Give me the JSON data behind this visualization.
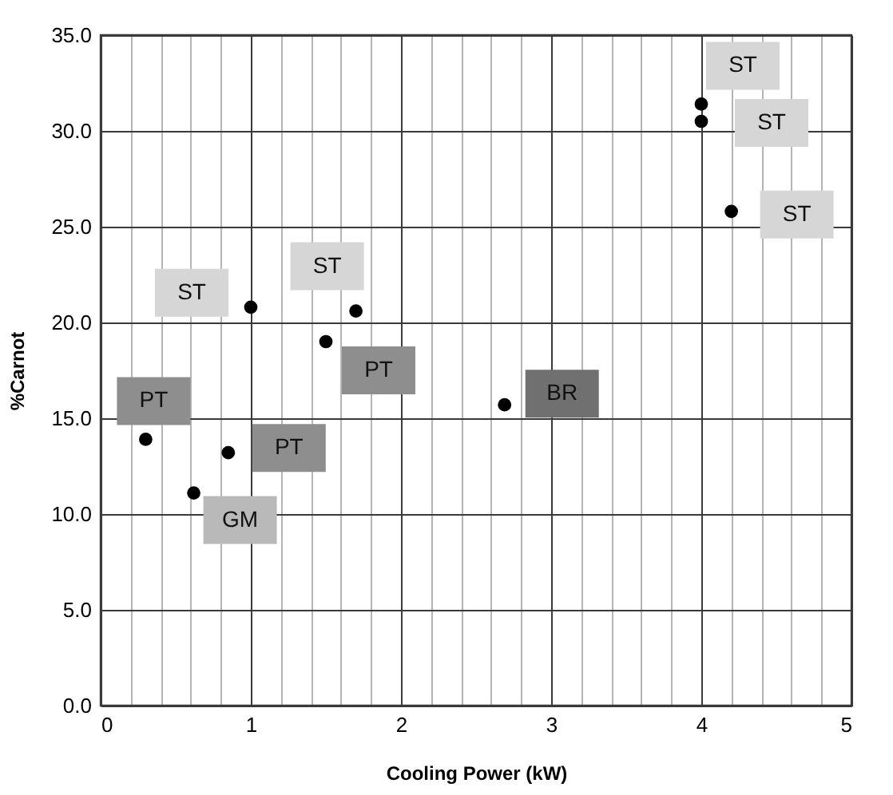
{
  "chart_data": {
    "type": "scatter",
    "xlabel": "Cooling Power (kW)",
    "ylabel": "%Carnot",
    "x": [
      0.3,
      0.62,
      0.85,
      1.0,
      1.5,
      1.7,
      2.69,
      4.0,
      4.0,
      4.2
    ],
    "values": [
      13.9,
      11.1,
      13.2,
      20.8,
      19.0,
      20.6,
      15.7,
      31.4,
      30.5,
      25.8
    ],
    "color": "#000000",
    "marker": "circle",
    "annotations": [
      {
        "text": "PT",
        "x": 0.3,
        "y": 13.9
      },
      {
        "text": "GM",
        "x": 0.62,
        "y": 11.1
      },
      {
        "text": "PT",
        "x": 0.85,
        "y": 13.2
      },
      {
        "text": "ST",
        "x": 1.0,
        "y": 20.8
      },
      {
        "text": "PT",
        "x": 1.5,
        "y": 19.0
      },
      {
        "text": "ST",
        "x": 1.7,
        "y": 20.6
      },
      {
        "text": "BR",
        "x": 2.69,
        "y": 15.7
      },
      {
        "text": "ST",
        "x": 4.0,
        "y": 31.4
      },
      {
        "text": "ST",
        "x": 4.0,
        "y": 30.5
      },
      {
        "text": "ST",
        "x": 4.2,
        "y": 25.8
      }
    ],
    "xlim": [
      0,
      5
    ],
    "ylim": [
      0,
      35
    ],
    "xticks": [
      0,
      {
        "value": 0.2,
        "label": null
      },
      {
        "value": 0.4,
        "label": null
      },
      {
        "value": 0.6,
        "label": null
      },
      {
        "value": 0.8,
        "label": null
      },
      1,
      {
        "value": 1.2,
        "label": null
      },
      {
        "value": 1.4,
        "label": null
      },
      {
        "value": 1.6,
        "label": null
      },
      {
        "value": 1.8,
        "label": null
      },
      2,
      {
        "value": 2.2,
        "label": null
      },
      {
        "value": 2.4,
        "label": null
      },
      {
        "value": 2.6,
        "label": null
      },
      {
        "value": 2.8,
        "label": null
      },
      3,
      {
        "value": 3.2,
        "label": null
      },
      {
        "value": 3.4,
        "label": null
      },
      {
        "value": 3.6,
        "label": null
      },
      {
        "value": 3.8,
        "label": null
      },
      4,
      {
        "value": 4.2,
        "label": null
      },
      {
        "value": 4.4,
        "label": null
      },
      {
        "value": 4.6,
        "label": null
      },
      {
        "value": 4.8,
        "label": null
      },
      5
    ],
    "yticks": [
      {
        "value": 0,
        "label": "0.0"
      },
      {
        "value": 5,
        "label": "5.0"
      },
      {
        "value": 10,
        "label": "10.0"
      },
      {
        "value": 15,
        "label": "15.0"
      },
      {
        "value": 20,
        "label": "20.0"
      },
      {
        "value": 25,
        "label": "25.0"
      },
      {
        "value": 30,
        "label": "30.0"
      },
      {
        "value": 35,
        "label": "35.0"
      }
    ],
    "grid": true
  }
}
